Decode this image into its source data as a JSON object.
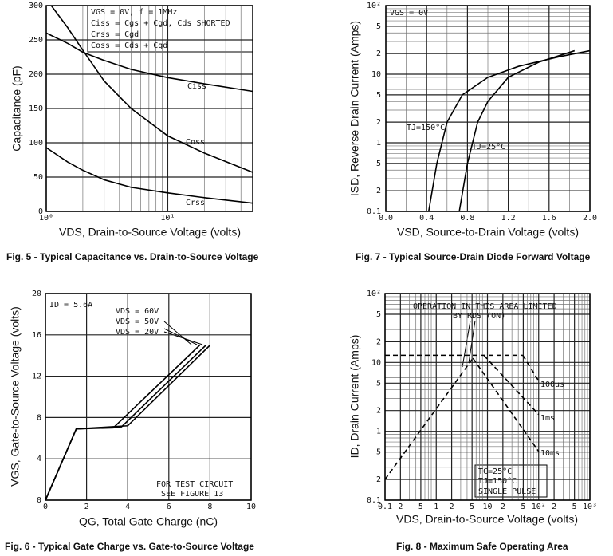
{
  "chart_data": [
    {
      "type": "line",
      "title": "Fig. 5 - Typical Capacitance vs. Drain-to-Source Voltage",
      "x_label": "VDS, Drain-to-Source Voltage (volts)",
      "y_label": "Capacitance (pF)",
      "xscale": "log",
      "xlim": [
        1,
        50
      ],
      "xticks": [
        {
          "value": 1,
          "label": "10⁰"
        },
        {
          "value": 10,
          "label": "10¹"
        }
      ],
      "x_minor_ticks": [
        2,
        3,
        4,
        5,
        6,
        7,
        8,
        9,
        20,
        30,
        40
      ],
      "ylim": [
        0,
        300
      ],
      "yticks": [
        0,
        50,
        100,
        150,
        200,
        250,
        300
      ],
      "grid": true,
      "color": "#000",
      "annotations": [
        "VGS = 0V,  f = 1MHz",
        "Ciss = Cgs + Cgd,  Cds SHORTED",
        "Crss = Cgd",
        "Coss = Cds + Cgd"
      ],
      "series": [
        {
          "name": "Ciss",
          "x": [
            1,
            1.5,
            2,
            3,
            5,
            10,
            20,
            50
          ],
          "values": [
            260,
            245,
            232,
            220,
            207,
            195,
            186,
            175
          ]
        },
        {
          "name": "Coss",
          "x": [
            1.1,
            1.5,
            2,
            3,
            5,
            10,
            20,
            50
          ],
          "values": [
            300,
            268,
            235,
            190,
            150,
            110,
            85,
            57
          ]
        },
        {
          "name": "Crss",
          "x": [
            1,
            1.5,
            2,
            3,
            5,
            10,
            20,
            50
          ],
          "values": [
            93,
            72,
            60,
            46,
            35,
            27,
            20,
            12
          ]
        }
      ]
    },
    {
      "type": "line",
      "title": "Fig. 7 - Typical Source-Drain Diode Forward Voltage",
      "x_label": "VSD, Source-to-Drain Voltage (volts)",
      "y_label": "ISD, Reverse Drain Current (Amps)",
      "xlim": [
        0,
        2
      ],
      "xticks": [
        {
          "value": 0,
          "label": "0.0"
        },
        0.4,
        0.8,
        1.2,
        1.6,
        {
          "value": 2,
          "label": "2.0"
        }
      ],
      "x_minor_ticks": [
        0.2,
        0.6,
        1.0,
        1.4,
        1.8
      ],
      "yscale": "log",
      "ylim": [
        0.1,
        100
      ],
      "yticks": [
        {
          "value": 100,
          "label": "10²"
        },
        {
          "value": 50,
          "label": "5"
        },
        {
          "value": 20,
          "label": "2"
        },
        10,
        5,
        2,
        1,
        {
          "value": 0.5,
          "label": "5"
        },
        {
          "value": 0.2,
          "label": "2"
        },
        0.1
      ],
      "y_minor_ticks": [
        0.3,
        0.4,
        0.6,
        0.7,
        0.8,
        0.9,
        3,
        4,
        6,
        7,
        8,
        9,
        30,
        40,
        60,
        70,
        80,
        90
      ],
      "grid": true,
      "color": "#000",
      "annotations": [
        "VGS = 0V"
      ],
      "series": [
        {
          "name": "TJ=150°C",
          "x": [
            0.42,
            0.5,
            0.6,
            0.75,
            1.0,
            1.3,
            1.7,
            2.0
          ],
          "values": [
            0.1,
            0.5,
            2,
            5,
            9,
            13,
            18,
            22
          ]
        },
        {
          "name": "TJ=25°C",
          "x": [
            0.72,
            0.8,
            0.9,
            1.0,
            1.2,
            1.5,
            1.85
          ],
          "values": [
            0.1,
            0.5,
            2,
            4,
            9,
            15,
            22
          ]
        }
      ]
    },
    {
      "type": "line",
      "title": "Fig. 6 - Typical Gate Charge vs. Gate-to-Source Voltage",
      "x_label": "QG, Total Gate Charge (nC)",
      "y_label": "VGS, Gate-to-Source Voltage (volts)",
      "xlim": [
        0,
        10
      ],
      "xticks": [
        0,
        2,
        4,
        6,
        8,
        10
      ],
      "ylim": [
        0,
        20
      ],
      "yticks": [
        0,
        4,
        8,
        12,
        16,
        20
      ],
      "grid": true,
      "color": "#000",
      "annotations": [
        "ID = 5.6A",
        "FOR TEST CIRCUIT",
        "SEE FIGURE 13"
      ],
      "series": [
        {
          "name": "VDS = 60V",
          "x": [
            0,
            1.5,
            4.0,
            8.0
          ],
          "values": [
            0,
            6.9,
            7.2,
            15
          ]
        },
        {
          "name": "VDS = 50V",
          "x": [
            0,
            1.5,
            3.7,
            7.8
          ],
          "values": [
            0,
            6.9,
            7.1,
            15
          ]
        },
        {
          "name": "VDS = 20V",
          "x": [
            0,
            1.5,
            3.3,
            7.5
          ],
          "values": [
            0,
            6.9,
            7.0,
            15
          ]
        }
      ]
    },
    {
      "type": "line",
      "title": "Fig. 8 - Maximum Safe Operating Area",
      "x_label": "VDS, Drain-to-Source Voltage (volts)",
      "y_label": "ID, Drain Current (Amps)",
      "xscale": "log",
      "xlim": [
        0.1,
        1000
      ],
      "xticks": [
        0.1,
        {
          "value": 0.2,
          "label": "2"
        },
        {
          "value": 0.5,
          "label": "5"
        },
        1,
        2,
        5,
        10,
        {
          "value": 20,
          "label": "2"
        },
        {
          "value": 50,
          "label": "5"
        },
        {
          "value": 100,
          "label": "10²"
        },
        {
          "value": 200,
          "label": "2"
        },
        {
          "value": 500,
          "label": "5"
        },
        {
          "value": 1000,
          "label": "10³"
        }
      ],
      "x_minor_ticks": [
        0.3,
        0.4,
        0.6,
        0.7,
        0.8,
        0.9,
        3,
        4,
        6,
        7,
        8,
        9,
        30,
        40,
        60,
        70,
        80,
        90,
        300,
        400,
        600,
        700,
        800,
        900
      ],
      "yscale": "log",
      "ylim": [
        0.1,
        100
      ],
      "yticks": [
        {
          "value": 100,
          "label": "10²"
        },
        {
          "value": 50,
          "label": "5"
        },
        {
          "value": 20,
          "label": "2"
        },
        10,
        5,
        2,
        1,
        {
          "value": 0.5,
          "label": "5"
        },
        {
          "value": 0.2,
          "label": "2"
        },
        0.1
      ],
      "y_minor_ticks": [
        0.3,
        0.4,
        0.6,
        0.7,
        0.8,
        0.9,
        3,
        4,
        6,
        7,
        8,
        9,
        30,
        40,
        60,
        70,
        80,
        90
      ],
      "grid": true,
      "color": "#000",
      "line_style": "dashed",
      "annotations": [
        "OPERATION IN THIS AREA LIMITED",
        "BY RDS (ON)",
        "TC=25°C",
        "TJ=150°C",
        "SINGLE PULSE"
      ],
      "series": [
        {
          "x": [
            0.1,
            5.2
          ],
          "values": [
            0.2,
            11.5
          ]
        },
        {
          "x": [
            0.1,
            49
          ],
          "values": [
            12.7,
            12.7
          ]
        },
        {
          "name": "10ms",
          "x": [
            5.2,
            100
          ],
          "values": [
            11.5,
            0.51
          ]
        },
        {
          "name": "1ms",
          "x": [
            8.5,
            100
          ],
          "values": [
            12.7,
            1.75
          ]
        },
        {
          "name": "100us",
          "x": [
            49,
            100
          ],
          "values": [
            12.7,
            5.4
          ]
        }
      ]
    }
  ]
}
